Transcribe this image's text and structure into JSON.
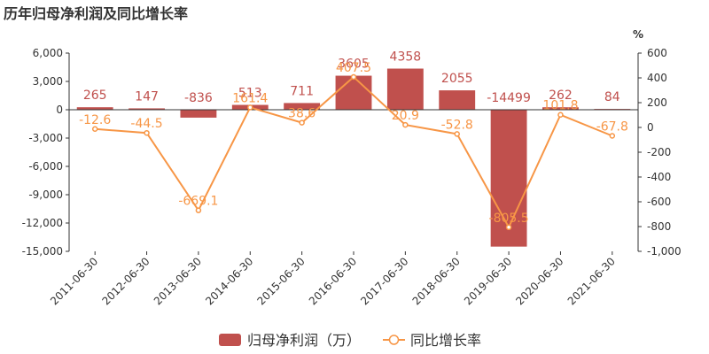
{
  "title": "历年归母净利润及同比增长率",
  "chart_data": {
    "type": "bar",
    "title": "历年归母净利润及同比增长率",
    "categories": [
      "2011-06-30",
      "2012-06-30",
      "2013-06-30",
      "2014-06-30",
      "2015-06-30",
      "2016-06-30",
      "2017-06-30",
      "2018-06-30",
      "2019-06-30",
      "2020-06-30",
      "2021-06-30"
    ],
    "series": [
      {
        "name": "归母净利润（万）",
        "type": "bar",
        "axis": "left",
        "color": "#c0504d",
        "values": [
          265,
          147,
          -836,
          513,
          711,
          3605,
          4358,
          2055,
          -14499,
          262,
          84
        ],
        "labels": [
          "265",
          "147",
          "-836",
          "513",
          "711",
          "3605",
          "4358",
          "2055",
          "-14499",
          "262",
          "84"
        ]
      },
      {
        "name": "同比增长率",
        "type": "line",
        "axis": "right",
        "color": "#f79646",
        "values": [
          -12.6,
          -44.5,
          -669.1,
          161.4,
          38.6,
          407.5,
          20.9,
          -52.8,
          -805.5,
          101.8,
          -67.8
        ],
        "labels": [
          "-12.6",
          "-44.5",
          "-669.1",
          "161.4",
          "38.6",
          "407.5",
          "20.9",
          "-52.8",
          "-805.5",
          "101.8",
          "-67.8"
        ]
      }
    ],
    "y_left": {
      "min": -15000,
      "max": 6000,
      "step": 3000,
      "ticks": [
        "6,000",
        "3,000",
        "0",
        "-3,000",
        "-6,000",
        "-9,000",
        "-12,000",
        "-15,000"
      ]
    },
    "y_right": {
      "min": -1000,
      "max": 600,
      "step": 200,
      "unit": "%",
      "ticks": [
        "600",
        "400",
        "200",
        "0",
        "-200",
        "-400",
        "-600",
        "-800",
        "-1,000"
      ]
    },
    "legend": {
      "position": "bottom",
      "items": [
        "归母净利润（万）",
        "同比增长率"
      ]
    },
    "grid": false
  }
}
